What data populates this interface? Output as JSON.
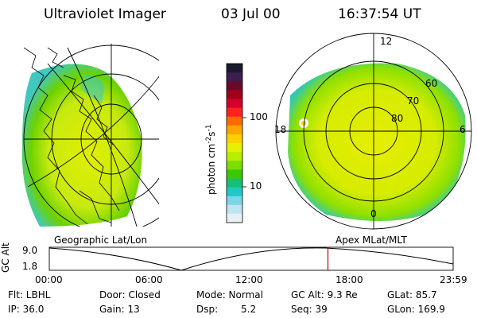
{
  "header": {
    "instrument": "Ultraviolet Imager",
    "date": "03 Jul 00",
    "time": "16:37:54 UT"
  },
  "left_panel": {
    "label": "Geographic Lat/Lon"
  },
  "right_panel": {
    "label": "Apex MLat/MLT",
    "mlt_labels": [
      "12",
      "18",
      "6",
      "0"
    ],
    "lat_labels": [
      "60",
      "70",
      "80"
    ]
  },
  "colorbar": {
    "unit": "photon cm",
    "unit_sup1": "-2",
    "unit_mid": "s",
    "unit_sup2": "-1",
    "ticks": [
      "100",
      "10"
    ],
    "colors": [
      "#1a1a2e",
      "#3a2050",
      "#6a0a2a",
      "#a00018",
      "#d4002a",
      "#ff2020",
      "#ff6a00",
      "#ffa500",
      "#ffd000",
      "#e6f000",
      "#b8ee00",
      "#7ddc00",
      "#3cc800",
      "#16c070",
      "#20c8c8",
      "#7ad6e6",
      "#bfe6f0",
      "#e8f0f4"
    ]
  },
  "altitude_plot": {
    "y_label": "GC Alt",
    "y_ticks": [
      "9.0",
      "1.8"
    ],
    "x_ticks": [
      "00:00",
      "06:00",
      "12:00",
      "18:00",
      "23:59"
    ],
    "current_time_fraction": 0.69
  },
  "info": {
    "flt": "Flt: LBHL",
    "ip": "IP: 36.0",
    "door": "Door: Closed",
    "gain": "Gain: 13",
    "mode": "Mode: Normal",
    "dsp_label": "Dsp:",
    "dsp_value": "5.2",
    "gc_alt": "GC Alt: 9.3 Re",
    "seq": "Seq: 39",
    "glat": "GLat: 85.7",
    "glon": "GLon: 169.9"
  }
}
